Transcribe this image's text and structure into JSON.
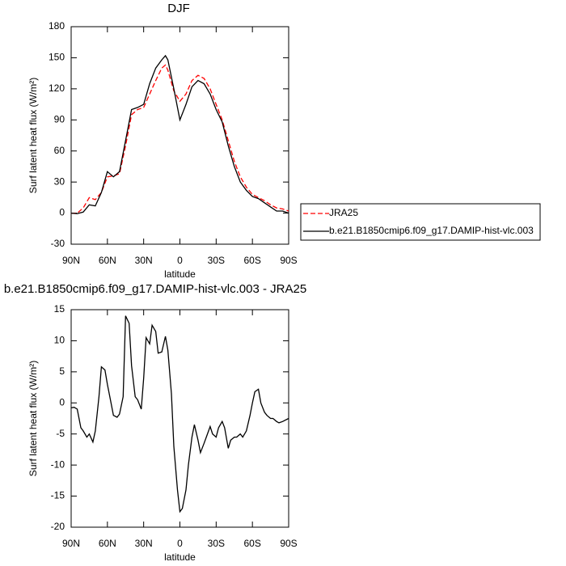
{
  "chart_data": [
    {
      "type": "line",
      "title": "DJF",
      "xlabel": "latitude",
      "ylabel": "Surf latent heat flux (W/m²)",
      "x": [
        90,
        85,
        80,
        75,
        70,
        65,
        60,
        55,
        50,
        45,
        40,
        35,
        30,
        25,
        20,
        15,
        12,
        10,
        5,
        0,
        -5,
        -10,
        -15,
        -20,
        -25,
        -30,
        -35,
        -40,
        -45,
        -50,
        -55,
        -60,
        -65,
        -70,
        -75,
        -80,
        -85,
        -90
      ],
      "series": [
        {
          "name": "JRA25",
          "color": "#ff0000",
          "dashed": true,
          "values": [
            0,
            0,
            5,
            15,
            13,
            20,
            35,
            36,
            38,
            65,
            95,
            100,
            102,
            115,
            128,
            140,
            143,
            138,
            118,
            108,
            115,
            128,
            133,
            130,
            120,
            105,
            90,
            70,
            50,
            35,
            25,
            18,
            15,
            12,
            8,
            5,
            4,
            2
          ]
        },
        {
          "name": "b.e21.B1850cmip6.f09_g17.DAMIP-hist-vlc.003",
          "color": "#000000",
          "dashed": false,
          "values": [
            0,
            -0.5,
            1,
            8,
            7,
            20,
            40,
            35,
            40,
            70,
            100,
            102,
            105,
            125,
            140,
            148,
            152,
            148,
            120,
            90,
            105,
            122,
            128,
            125,
            115,
            100,
            88,
            65,
            45,
            30,
            22,
            16,
            14,
            10,
            6,
            2,
            2,
            0
          ]
        }
      ],
      "xlim": [
        90,
        -90
      ],
      "xticks": [
        {
          "value": 90,
          "label": "90N"
        },
        {
          "value": 60,
          "label": "60N"
        },
        {
          "value": 30,
          "label": "30N"
        },
        0,
        {
          "value": -30,
          "label": "30S"
        },
        {
          "value": -60,
          "label": "60S"
        },
        {
          "value": -90,
          "label": "90S"
        }
      ],
      "ylim": [
        -30,
        180
      ],
      "yticks": [
        -30,
        0,
        30,
        60,
        90,
        120,
        150,
        180
      ],
      "legend": "right"
    },
    {
      "type": "line",
      "title": "b.e21.B1850cmip6.f09_g17.DAMIP-hist-vlc.003 - JRA25",
      "xlabel": "latitude",
      "ylabel": "Surf latent heat flux (W/m²)",
      "x": [
        90,
        87.5,
        85,
        82,
        80,
        77,
        75,
        72,
        70,
        67,
        65,
        62,
        60,
        57,
        55,
        52,
        50,
        47,
        45,
        42,
        40,
        37,
        35,
        32,
        30,
        28,
        25,
        23,
        20,
        18,
        15,
        12,
        10,
        7,
        5,
        2,
        0,
        -2,
        -5,
        -7,
        -10,
        -12,
        -15,
        -17,
        -20,
        -25,
        -27,
        -30,
        -32,
        -35,
        -37,
        -40,
        -42,
        -45,
        -47,
        -50,
        -52,
        -55,
        -58,
        -60,
        -62,
        -65,
        -67,
        -70,
        -72,
        -75,
        -77,
        -80,
        -82,
        -85,
        -90
      ],
      "series": [
        {
          "color": "#000000",
          "dashed": false,
          "values": [
            -0.8,
            -0.7,
            -1,
            -4,
            -4.5,
            -5.5,
            -5,
            -6.3,
            -4.5,
            1,
            5.8,
            5.3,
            3,
            0,
            -2,
            -2.3,
            -1.8,
            1,
            14,
            12.8,
            6,
            1,
            0.5,
            -1,
            4,
            10.5,
            9.5,
            12.5,
            11.5,
            8,
            8.2,
            10.7,
            8.5,
            1.5,
            -7,
            -14,
            -17.5,
            -17,
            -14,
            -10,
            -5.5,
            -3.5,
            -6,
            -8,
            -6.5,
            -3.8,
            -5,
            -5.5,
            -4,
            -3,
            -4,
            -7.3,
            -6,
            -5.5,
            -5.5,
            -5,
            -5.5,
            -4.5,
            -2,
            0,
            1.8,
            2.2,
            0,
            -1.5,
            -2,
            -2.5,
            -2.5,
            -3,
            -3.2,
            -3,
            -2.5
          ]
        }
      ],
      "xlim": [
        90,
        -90
      ],
      "xticks": [
        {
          "value": 90,
          "label": "90N"
        },
        {
          "value": 60,
          "label": "60N"
        },
        {
          "value": 30,
          "label": "30N"
        },
        0,
        {
          "value": -30,
          "label": "30S"
        },
        {
          "value": -60,
          "label": "60S"
        },
        {
          "value": -90,
          "label": "90S"
        }
      ],
      "ylim": [
        -20,
        15
      ],
      "yticks": [
        -20,
        -15,
        -10,
        -5,
        0,
        5,
        10,
        15
      ]
    }
  ]
}
